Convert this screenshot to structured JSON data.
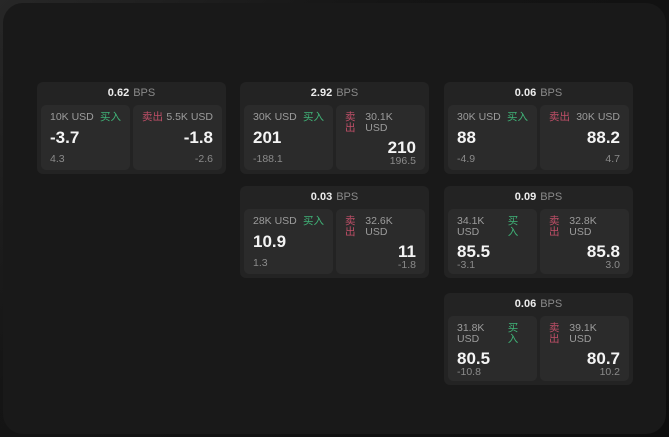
{
  "labels": {
    "bps_unit": "BPS",
    "buy": "买入",
    "sell": "卖出"
  },
  "colors": {
    "buy_green": "#40b478",
    "sell_red": "#c04f68",
    "surface": "#191919",
    "card": "#232323",
    "panel": "#2b2b2b"
  },
  "cards": [
    {
      "spread_bps": "0.62",
      "buy": {
        "amount": "10K USD",
        "price": "-3.7",
        "change": "4.3"
      },
      "sell": {
        "amount": "5.5K USD",
        "price": "-1.8",
        "change": "-2.6"
      }
    },
    {
      "spread_bps": "2.92",
      "buy": {
        "amount": "30K USD",
        "price": "201",
        "change": "-188.1"
      },
      "sell": {
        "amount": "30.1K USD",
        "price": "210",
        "change": "196.5"
      }
    },
    {
      "spread_bps": "0.06",
      "buy": {
        "amount": "30K USD",
        "price": "88",
        "change": "-4.9"
      },
      "sell": {
        "amount": "30K USD",
        "price": "88.2",
        "change": "4.7"
      }
    },
    {
      "spread_bps": "0.03",
      "buy": {
        "amount": "28K USD",
        "price": "10.9",
        "change": "1.3"
      },
      "sell": {
        "amount": "32.6K USD",
        "price": "11",
        "change": "-1.8"
      }
    },
    {
      "spread_bps": "0.09",
      "buy": {
        "amount": "34.1K USD",
        "price": "85.5",
        "change": "-3.1"
      },
      "sell": {
        "amount": "32.8K USD",
        "price": "85.8",
        "change": "3.0"
      }
    },
    {
      "spread_bps": "0.06",
      "buy": {
        "amount": "31.8K USD",
        "price": "80.5",
        "change": "-10.8"
      },
      "sell": {
        "amount": "39.1K USD",
        "price": "80.7",
        "change": "10.2"
      }
    }
  ]
}
